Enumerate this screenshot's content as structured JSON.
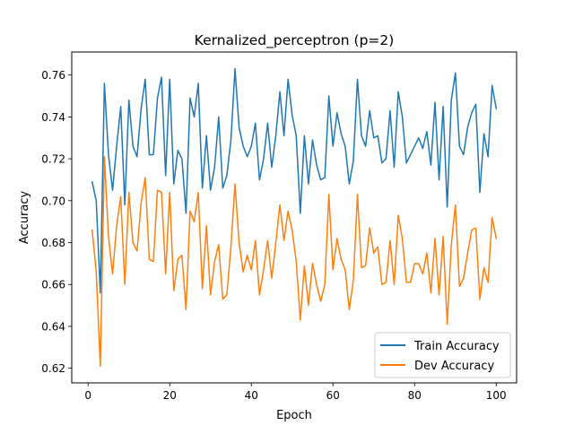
{
  "chart_data": {
    "type": "line",
    "title": "Kernalized_perceptron (p=2)",
    "xlabel": "Epoch",
    "ylabel": "Accuracy",
    "xlim": [
      -4,
      105
    ],
    "ylim": [
      0.613,
      0.771
    ],
    "xticks": [
      0,
      20,
      40,
      60,
      80,
      100
    ],
    "yticks": [
      0.62,
      0.64,
      0.66,
      0.68,
      0.7,
      0.72,
      0.74,
      0.76
    ],
    "legend_position": "lower-right",
    "grid": false,
    "x": [
      1,
      2,
      3,
      4,
      5,
      6,
      7,
      8,
      9,
      10,
      11,
      12,
      13,
      14,
      15,
      16,
      17,
      18,
      19,
      20,
      21,
      22,
      23,
      24,
      25,
      26,
      27,
      28,
      29,
      30,
      31,
      32,
      33,
      34,
      35,
      36,
      37,
      38,
      39,
      40,
      41,
      42,
      43,
      44,
      45,
      46,
      47,
      48,
      49,
      50,
      51,
      52,
      53,
      54,
      55,
      56,
      57,
      58,
      59,
      60,
      61,
      62,
      63,
      64,
      65,
      66,
      67,
      68,
      69,
      70,
      71,
      72,
      73,
      74,
      75,
      76,
      77,
      78,
      79,
      80,
      81,
      82,
      83,
      84,
      85,
      86,
      87,
      88,
      89,
      90,
      91,
      92,
      93,
      94,
      95,
      96,
      97,
      98,
      99,
      100
    ],
    "series": [
      {
        "name": "Train Accuracy",
        "color": "#1f77b4",
        "values": [
          0.709,
          0.7,
          0.656,
          0.756,
          0.722,
          0.705,
          0.726,
          0.745,
          0.698,
          0.748,
          0.726,
          0.721,
          0.744,
          0.758,
          0.722,
          0.722,
          0.749,
          0.759,
          0.712,
          0.758,
          0.708,
          0.724,
          0.72,
          0.694,
          0.749,
          0.74,
          0.756,
          0.706,
          0.731,
          0.705,
          0.716,
          0.74,
          0.706,
          0.712,
          0.729,
          0.763,
          0.735,
          0.726,
          0.721,
          0.726,
          0.737,
          0.71,
          0.72,
          0.737,
          0.716,
          0.731,
          0.752,
          0.731,
          0.758,
          0.741,
          0.731,
          0.694,
          0.731,
          0.708,
          0.729,
          0.717,
          0.71,
          0.711,
          0.75,
          0.726,
          0.742,
          0.732,
          0.726,
          0.708,
          0.719,
          0.758,
          0.731,
          0.726,
          0.743,
          0.73,
          0.731,
          0.718,
          0.72,
          0.743,
          0.716,
          0.752,
          0.74,
          0.718,
          0.722,
          0.726,
          0.73,
          0.725,
          0.733,
          0.717,
          0.747,
          0.71,
          0.745,
          0.697,
          0.748,
          0.761,
          0.726,
          0.722,
          0.735,
          0.742,
          0.746,
          0.704,
          0.732,
          0.721,
          0.755,
          0.744
        ]
      },
      {
        "name": "Dev Accuracy",
        "color": "#ff7f0e",
        "values": [
          0.686,
          0.666,
          0.621,
          0.721,
          0.683,
          0.665,
          0.688,
          0.702,
          0.66,
          0.704,
          0.68,
          0.676,
          0.699,
          0.711,
          0.672,
          0.671,
          0.705,
          0.704,
          0.665,
          0.704,
          0.657,
          0.672,
          0.674,
          0.648,
          0.695,
          0.69,
          0.704,
          0.658,
          0.688,
          0.655,
          0.671,
          0.679,
          0.653,
          0.655,
          0.678,
          0.708,
          0.68,
          0.666,
          0.674,
          0.667,
          0.681,
          0.655,
          0.667,
          0.681,
          0.663,
          0.68,
          0.698,
          0.681,
          0.695,
          0.686,
          0.671,
          0.643,
          0.669,
          0.65,
          0.67,
          0.66,
          0.652,
          0.66,
          0.703,
          0.667,
          0.682,
          0.672,
          0.667,
          0.648,
          0.662,
          0.703,
          0.668,
          0.669,
          0.687,
          0.675,
          0.678,
          0.66,
          0.661,
          0.681,
          0.66,
          0.693,
          0.682,
          0.661,
          0.661,
          0.67,
          0.67,
          0.665,
          0.675,
          0.656,
          0.682,
          0.655,
          0.683,
          0.641,
          0.679,
          0.698,
          0.659,
          0.663,
          0.675,
          0.686,
          0.687,
          0.653,
          0.668,
          0.661,
          0.692,
          0.682
        ]
      }
    ]
  }
}
